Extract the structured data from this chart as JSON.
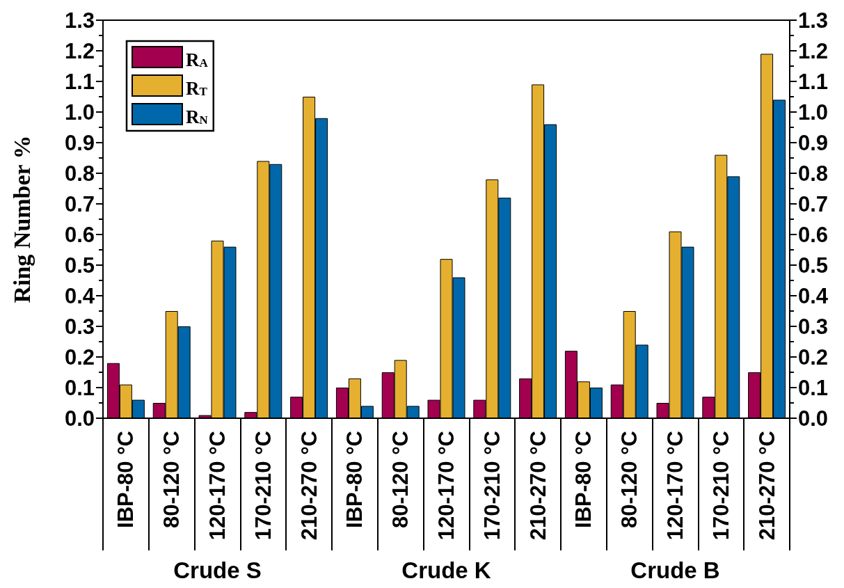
{
  "chart_data": {
    "type": "bar",
    "ylabel": "Ring Number %",
    "categories": [
      "IBP-80 °C",
      "80-120 °C",
      "120-170 °C",
      "170-210 °C",
      "210-270 °C",
      "IBP-80 °C",
      "80-120 °C",
      "120-170 °C",
      "170-210 °C",
      "210-270 °C",
      "IBP-80 °C",
      "80-120 °C",
      "120-170 °C",
      "170-210 °C",
      "210-270 °C"
    ],
    "series": [
      {
        "name": "R$_{A}$",
        "color": "#a3004f",
        "values": [
          0.18,
          0.05,
          0.01,
          0.02,
          0.07,
          0.1,
          0.15,
          0.06,
          0.06,
          0.13,
          0.22,
          0.11,
          0.05,
          0.07,
          0.15
        ]
      },
      {
        "name": "R$_{T}$",
        "color": "#e5b030",
        "values": [
          0.11,
          0.35,
          0.58,
          0.84,
          1.05,
          0.13,
          0.19,
          0.52,
          0.78,
          1.09,
          0.12,
          0.35,
          0.61,
          0.86,
          1.19
        ]
      },
      {
        "name": "R$_{N}$",
        "color": "#0068aa",
        "values": [
          0.06,
          0.3,
          0.56,
          0.83,
          0.98,
          0.04,
          0.04,
          0.46,
          0.72,
          0.96,
          0.1,
          0.24,
          0.56,
          0.79,
          1.04
        ]
      }
    ],
    "ylim": [
      0,
      1.3
    ],
    "yticks": [
      {
        "value": 0,
        "label": "0.0"
      },
      0.1,
      0.2,
      0.3,
      0.4,
      0.5,
      0.6,
      0.7,
      0.8,
      0.9,
      {
        "value": 1,
        "label": "1.0"
      },
      1.1,
      1.2,
      1.3
    ],
    "y2lim": [
      0,
      1.3
    ],
    "y2ticks": [
      {
        "value": 0,
        "label": "0.0"
      },
      0.1,
      0.2,
      0.3,
      0.4,
      0.5,
      0.6,
      0.7,
      0.8,
      0.9,
      {
        "value": 1,
        "label": "1.0"
      },
      1.1,
      1.2,
      1.3
    ],
    "legend": "top left",
    "annotations": [
      "Crude S",
      "Crude K",
      "Crude B"
    ]
  }
}
